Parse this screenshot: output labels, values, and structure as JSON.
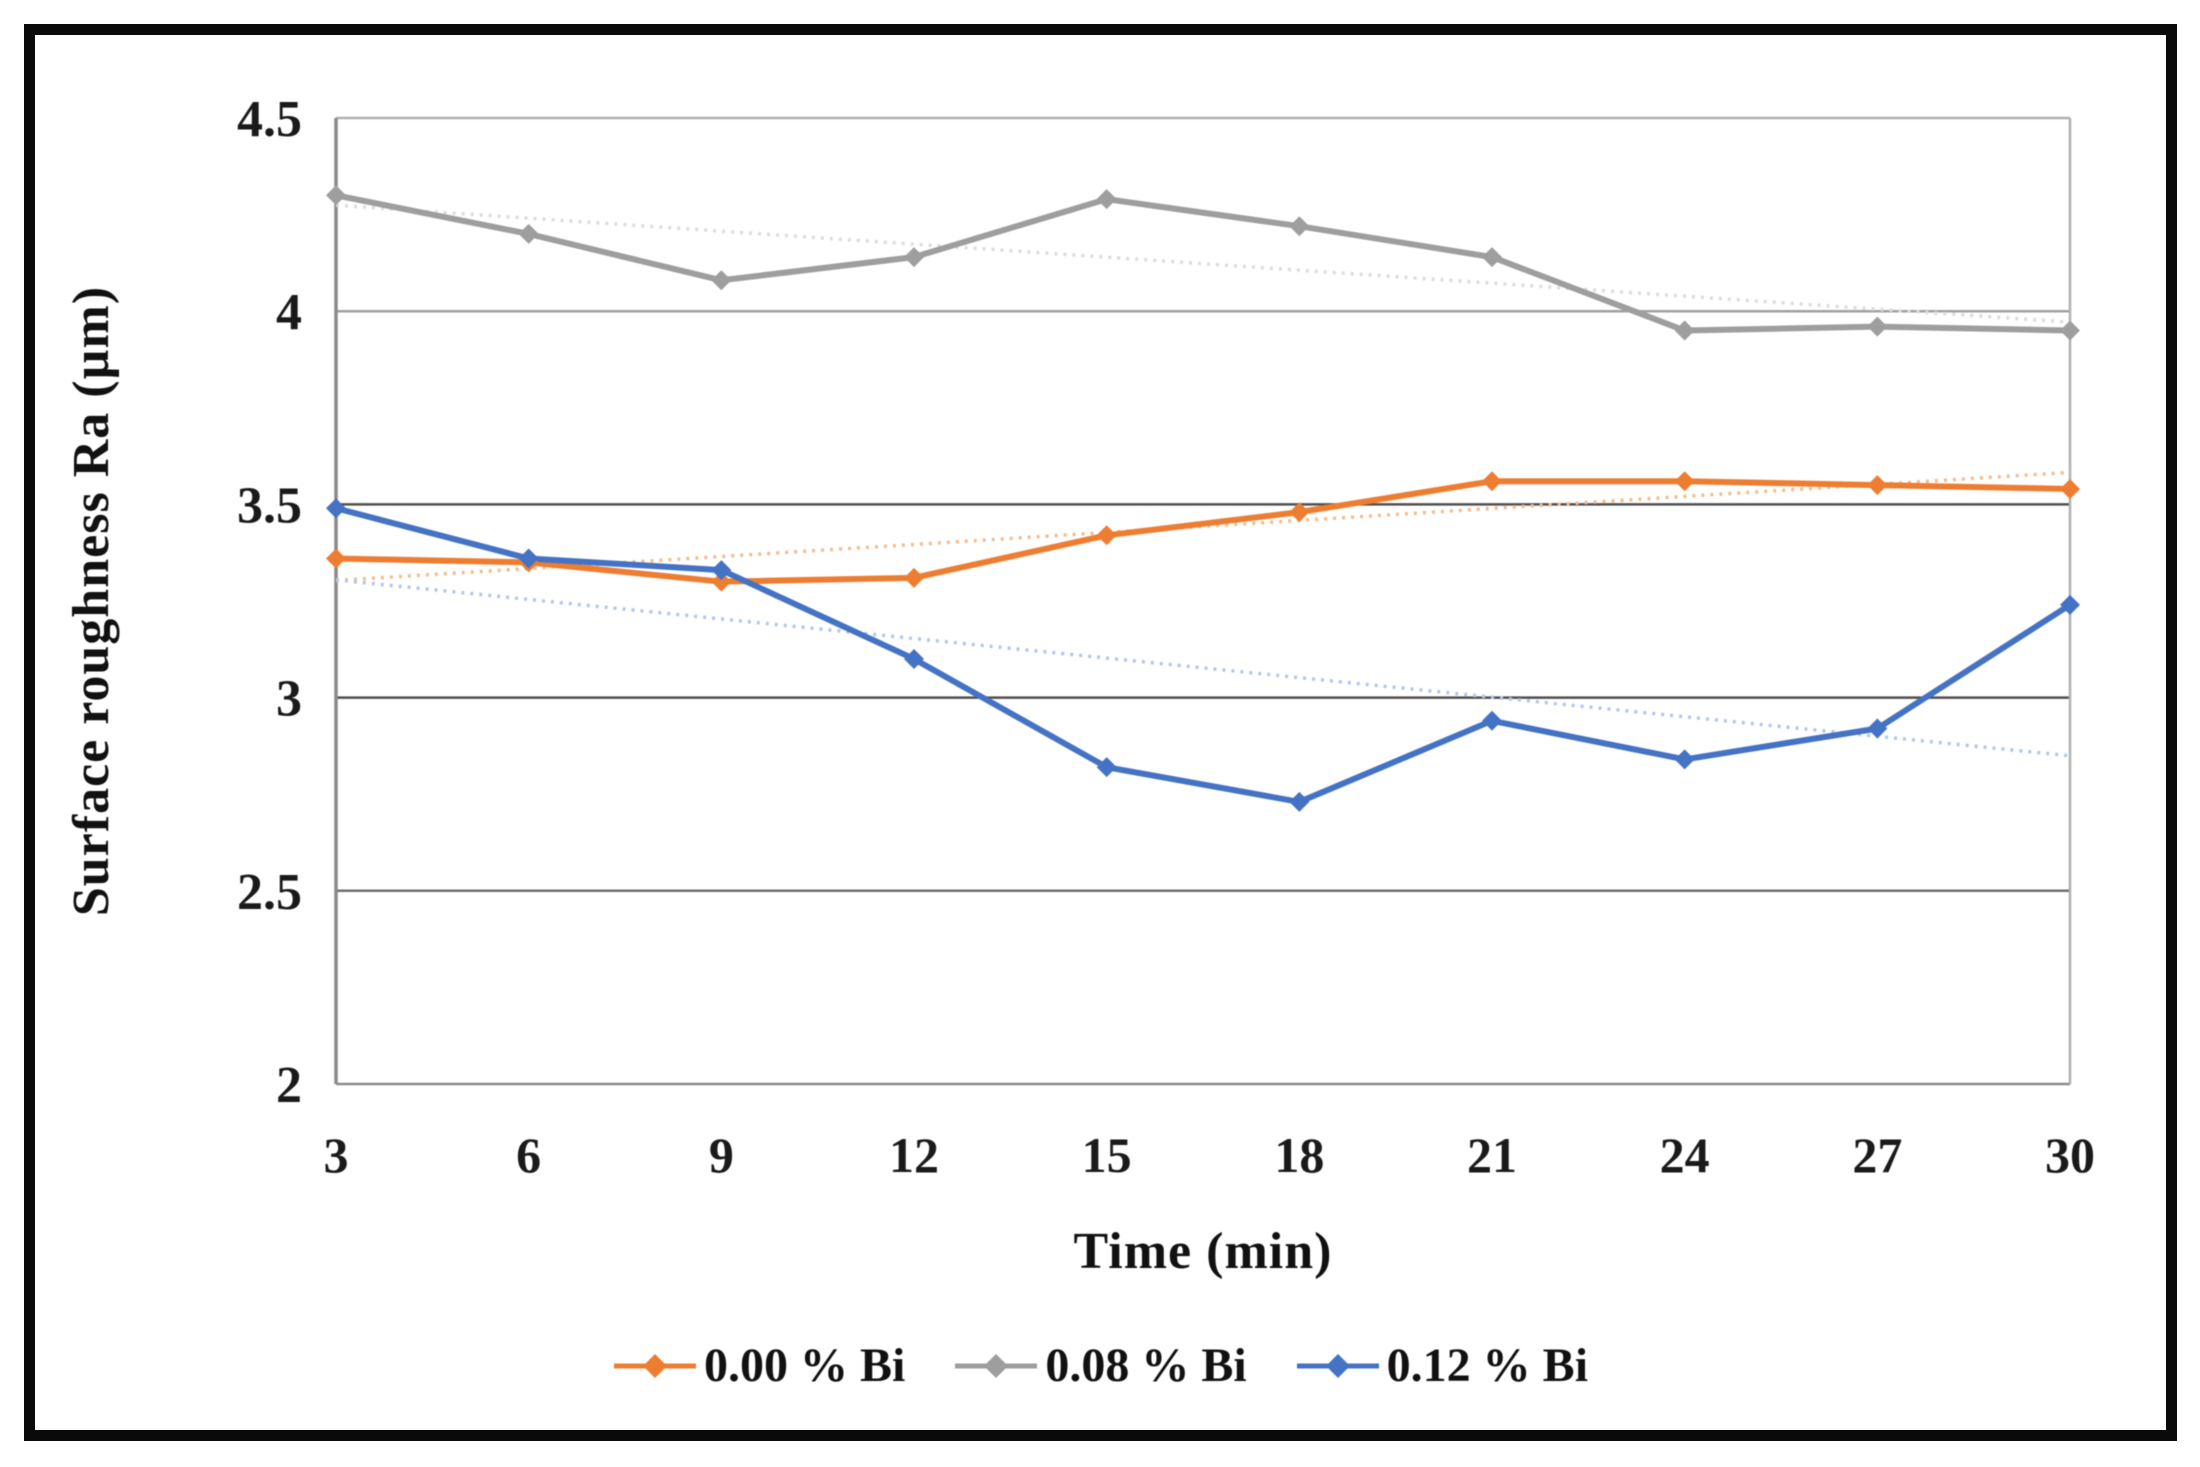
{
  "figure": {
    "background": "#ffffff",
    "frame_border_color": "#0a0a0a"
  },
  "chart_data": {
    "type": "line",
    "title": "",
    "xlabel": "Time (min)",
    "ylabel": "Surface roughness Ra (µm)",
    "x_categories": [
      "3",
      "6",
      "9",
      "12",
      "15",
      "18",
      "21",
      "24",
      "27",
      "30"
    ],
    "y_tick_labels": [
      "4.5",
      "4",
      "3.5",
      "3",
      "2.5",
      "2"
    ],
    "y_tick_values": [
      4.5,
      4,
      3.5,
      3,
      2.5,
      2
    ],
    "ylim": [
      2,
      4.5
    ],
    "grid": "horizontal",
    "legend_position": "bottom",
    "series": [
      {
        "name": "0.00 % Bi",
        "color": "#ED7D31",
        "trend_color": "#F3BC8C",
        "marker": "diamond",
        "trendline": "linear",
        "values": [
          3.36,
          3.35,
          3.3,
          3.31,
          3.42,
          3.48,
          3.56,
          3.56,
          3.55,
          3.54
        ]
      },
      {
        "name": "0.08 % Bi",
        "color": "#9E9E9E",
        "trend_color": "#DCDCDC",
        "marker": "diamond",
        "trendline": "linear",
        "values": [
          4.3,
          4.2,
          4.08,
          4.14,
          4.29,
          4.22,
          4.14,
          3.95,
          3.96,
          3.95
        ]
      },
      {
        "name": "0.12 % Bi",
        "color": "#4472C4",
        "trend_color": "#B3C6EA",
        "marker": "diamond",
        "trendline": "linear",
        "values": [
          3.49,
          3.36,
          3.33,
          3.1,
          2.82,
          2.73,
          2.94,
          2.84,
          2.92,
          3.24
        ]
      }
    ]
  },
  "style": {
    "gridline_colors": [
      "#b0b0b0",
      "#a0a0a0",
      "#4f4f4f",
      "#4f4f4f",
      "#6e6e6e",
      "#8a8a8a"
    ],
    "left_axis_color": "#8a8a8a",
    "right_border_color": "#b0b0b0",
    "tick_text_color": "#1a1a1a"
  }
}
